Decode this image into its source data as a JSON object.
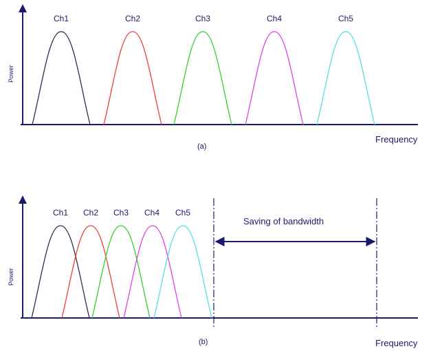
{
  "colors": {
    "axis": "#1a1a6e",
    "ch1": "#2b2b55",
    "ch2": "#e8413a",
    "ch3": "#35cf35",
    "ch4": "#e040e0",
    "ch5": "#55e0e0"
  },
  "panel_a": {
    "y_label": "Power",
    "x_label": "Frequency",
    "caption": "(a)",
    "channels": [
      "Ch1",
      "Ch2",
      "Ch3",
      "Ch4",
      "Ch5"
    ]
  },
  "panel_b": {
    "y_label": "Power",
    "x_label": "Frequency",
    "caption": "(b)",
    "channels": [
      "Ch1",
      "Ch2",
      "Ch3",
      "Ch4",
      "Ch5"
    ],
    "annotation": "Saving of bandwidth"
  }
}
